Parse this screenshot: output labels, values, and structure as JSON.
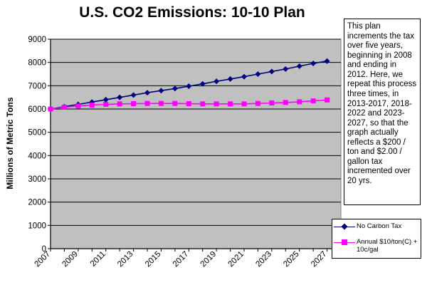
{
  "chart_data": {
    "type": "line",
    "title": "U.S. CO2 Emissions: 10-10 Plan",
    "ylabel": "Millions of Metric Tons",
    "xlabel": "",
    "xlim": [
      2007,
      2028
    ],
    "ylim": [
      0,
      9000
    ],
    "x_ticks": [
      2007,
      2009,
      2011,
      2013,
      2015,
      2017,
      2019,
      2021,
      2023,
      2025,
      2027
    ],
    "y_ticks": [
      0,
      1000,
      2000,
      3000,
      4000,
      5000,
      6000,
      7000,
      8000,
      9000
    ],
    "grid": "horizontal",
    "legend_position": "right",
    "x": [
      2007,
      2008,
      2009,
      2010,
      2011,
      2012,
      2013,
      2014,
      2015,
      2016,
      2017,
      2018,
      2019,
      2020,
      2021,
      2022,
      2023,
      2024,
      2025,
      2026,
      2027
    ],
    "series": [
      {
        "name": "No Carbon Tax",
        "color": "#000080",
        "marker": "diamond",
        "values": [
          6000,
          6100,
          6200,
          6300,
          6400,
          6500,
          6600,
          6700,
          6790,
          6880,
          6980,
          7080,
          7190,
          7290,
          7390,
          7500,
          7610,
          7720,
          7840,
          7960,
          8060
        ]
      },
      {
        "name": "Annual $10/ton(C) + 10c/gal",
        "color": "#ff00ff",
        "marker": "square",
        "values": [
          6000,
          6080,
          6130,
          6170,
          6200,
          6220,
          6230,
          6240,
          6240,
          6240,
          6230,
          6220,
          6220,
          6220,
          6220,
          6240,
          6260,
          6280,
          6310,
          6350,
          6390
        ]
      }
    ],
    "annotation": "This plan increments the tax over five years, beginning in 2008 and ending in 2012. Here, we repeat this process three times, in 2013-2017, 2018-2022 and 2023-2027, so that the graph actually reflects a $200 / ton and $2.00 / gallon tax incremented over 20 yrs.",
    "colors": {
      "plot_background": "#c0c0c0",
      "gridline": "#000000"
    }
  }
}
